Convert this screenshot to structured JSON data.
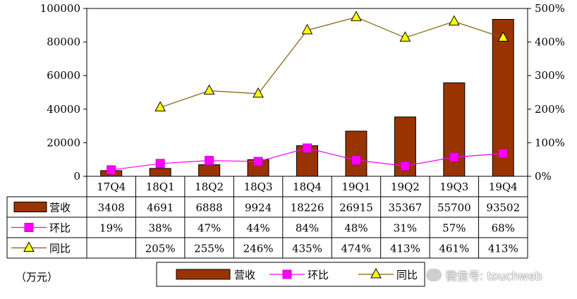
{
  "chart_data": {
    "type": "bar",
    "categories": [
      "17Q4",
      "18Q1",
      "18Q2",
      "18Q3",
      "18Q4",
      "19Q1",
      "19Q2",
      "19Q3",
      "19Q4"
    ],
    "series": [
      {
        "name": "营收",
        "kind": "bar",
        "axis": "left",
        "color": "#993300",
        "values": [
          3408,
          4691,
          6888,
          9924,
          18226,
          26915,
          35367,
          55700,
          93502
        ],
        "labels": [
          "3408",
          "4691",
          "6888",
          "9924",
          "18226",
          "26915",
          "35367",
          "55700",
          "93502"
        ]
      },
      {
        "name": "环比",
        "kind": "line",
        "axis": "right",
        "color": "#ff00ff",
        "marker": "square",
        "values": [
          19,
          38,
          47,
          44,
          84,
          48,
          31,
          57,
          68
        ],
        "labels": [
          "19%",
          "38%",
          "47%",
          "44%",
          "84%",
          "48%",
          "31%",
          "57%",
          "68%"
        ]
      },
      {
        "name": "同比",
        "kind": "line",
        "axis": "right",
        "color": "#806000",
        "marker": "triangle",
        "marker_color": "#ffff00",
        "values": [
          null,
          205,
          255,
          246,
          435,
          474,
          413,
          461,
          413
        ],
        "labels": [
          "",
          "205%",
          "255%",
          "246%",
          "435%",
          "474%",
          "413%",
          "461%",
          "413%"
        ]
      }
    ],
    "y_left": {
      "min": 0,
      "max": 100000,
      "ticks": [
        "0",
        "20000",
        "40000",
        "60000",
        "80000",
        "100000"
      ]
    },
    "y_right": {
      "min": 0,
      "max": 500,
      "ticks": [
        "0%",
        "100%",
        "200%",
        "300%",
        "400%",
        "500%"
      ]
    },
    "grid": false,
    "legend_position": "bottom",
    "unit_label": "（万元）"
  },
  "watermark": {
    "text": "微信号: touchweb",
    "icon": "wechat-icon"
  }
}
